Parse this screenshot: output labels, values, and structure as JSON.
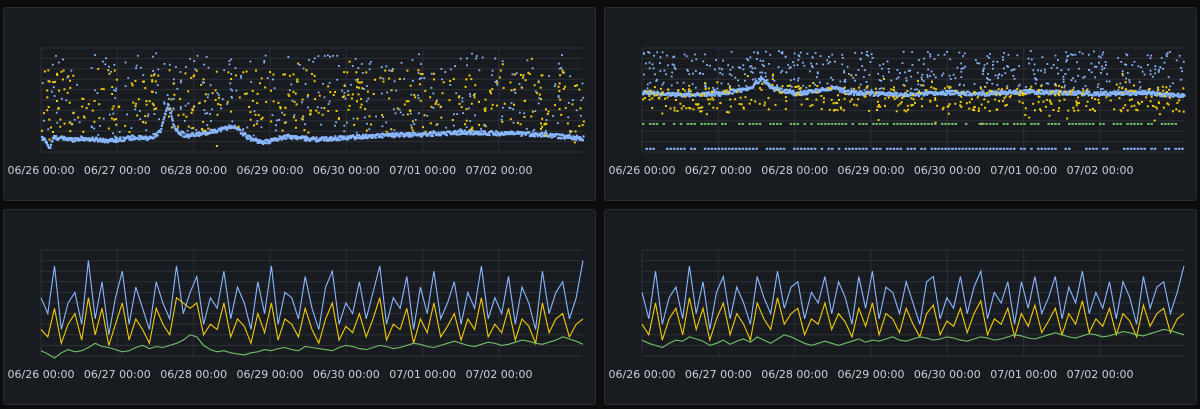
{
  "colors": {
    "background": "#0b0c0e",
    "panel": "#181b1f",
    "grid": "#2c3036",
    "blue": "#8ab8ff",
    "yellow": "#f2cc0c",
    "green": "#73bf69",
    "tick_text": "#ccccdc"
  },
  "chart_data": [
    {
      "type": "scatter",
      "title": "",
      "x_ticks": [
        "06/26 00:00",
        "06/27 00:00",
        "06/28 00:00",
        "06/29 00:00",
        "06/30 00:00",
        "07/01 00:00",
        "07/02 00:00"
      ],
      "x_range_days": [
        0,
        7.1
      ],
      "ylim": [
        0,
        100
      ],
      "grid": true,
      "series": [
        {
          "name": "blue",
          "color": "#8ab8ff",
          "style": "dense-band",
          "baseline": [
            [
              0.0,
              14
            ],
            [
              0.05,
              12
            ],
            [
              0.1,
              4
            ],
            [
              0.15,
              15
            ],
            [
              0.4,
              13
            ],
            [
              0.5,
              14
            ],
            [
              0.9,
              12
            ],
            [
              1.2,
              15
            ],
            [
              1.4,
              14
            ],
            [
              1.55,
              20
            ],
            [
              1.65,
              47
            ],
            [
              1.75,
              22
            ],
            [
              1.9,
              16
            ],
            [
              2.3,
              22
            ],
            [
              2.5,
              26
            ],
            [
              2.7,
              15
            ],
            [
              2.9,
              10
            ],
            [
              3.2,
              16
            ],
            [
              3.6,
              13
            ],
            [
              4.0,
              15
            ],
            [
              4.5,
              17
            ],
            [
              5.0,
              18
            ],
            [
              5.5,
              20
            ],
            [
              6.0,
              19
            ],
            [
              6.5,
              18
            ],
            [
              7.1,
              14
            ]
          ],
          "scatter_density": "medium"
        },
        {
          "name": "yellow",
          "color": "#f2cc0c",
          "style": "scatter",
          "level_range": [
            20,
            80
          ]
        }
      ]
    },
    {
      "type": "scatter",
      "title": "",
      "x_ticks": [
        "06/26 00:00",
        "06/27 00:00",
        "06/28 00:00",
        "06/29 00:00",
        "06/30 00:00",
        "07/01 00:00",
        "07/02 00:00"
      ],
      "x_range_days": [
        0,
        7.1
      ],
      "ylim": [
        0,
        100
      ],
      "grid": true,
      "series": [
        {
          "name": "blue",
          "color": "#8ab8ff",
          "style": "dense-band",
          "baseline": [
            [
              0.0,
              58
            ],
            [
              0.5,
              56
            ],
            [
              1.0,
              57
            ],
            [
              1.4,
              62
            ],
            [
              1.55,
              72
            ],
            [
              1.7,
              62
            ],
            [
              2.0,
              57
            ],
            [
              2.3,
              60
            ],
            [
              2.5,
              63
            ],
            [
              2.7,
              58
            ],
            [
              3.0,
              57
            ],
            [
              3.5,
              56
            ],
            [
              4.0,
              58
            ],
            [
              4.5,
              57
            ],
            [
              5.0,
              59
            ],
            [
              5.5,
              58
            ],
            [
              6.0,
              57
            ],
            [
              6.5,
              58
            ],
            [
              7.1,
              55
            ]
          ],
          "scatter_density": "high"
        },
        {
          "name": "yellow",
          "color": "#f2cc0c",
          "style": "scatter",
          "level_range": [
            40,
            65
          ]
        },
        {
          "name": "green",
          "color": "#73bf69",
          "style": "dashed-level",
          "level": 28
        },
        {
          "name": "blue-floor",
          "color": "#8ab8ff",
          "style": "dashed-level",
          "level": 4
        }
      ]
    },
    {
      "type": "line",
      "title": "",
      "x_ticks": [
        "06/26 00:00",
        "06/27 00:00",
        "06/28 00:00",
        "06/29 00:00",
        "06/30 00:00",
        "07/01 00:00",
        "07/02 00:00"
      ],
      "x_range_days": [
        0,
        7.1
      ],
      "ylim": [
        0,
        100
      ],
      "grid": true,
      "series": [
        {
          "name": "blue",
          "color": "#8ab8ff",
          "values": [
            55,
            40,
            85,
            25,
            50,
            60,
            30,
            90,
            35,
            70,
            20,
            55,
            80,
            30,
            65,
            45,
            25,
            70,
            50,
            35,
            85,
            40,
            60,
            75,
            30,
            55,
            45,
            80,
            35,
            65,
            50,
            25,
            70,
            40,
            85,
            30,
            60,
            55,
            35,
            75,
            45,
            25,
            65,
            80,
            30,
            50,
            40,
            70,
            35,
            60,
            85,
            30,
            55,
            45,
            75,
            25,
            65,
            40,
            80,
            35,
            50,
            70,
            30,
            60,
            45,
            85,
            35,
            55,
            40,
            75,
            30,
            65,
            50,
            25,
            80,
            40,
            60,
            70,
            35,
            55,
            90
          ]
        },
        {
          "name": "yellow",
          "color": "#f2cc0c",
          "values": [
            25,
            18,
            45,
            12,
            30,
            40,
            15,
            55,
            20,
            45,
            10,
            30,
            50,
            15,
            35,
            25,
            12,
            45,
            30,
            20,
            55,
            50,
            45,
            50,
            20,
            30,
            25,
            50,
            18,
            35,
            28,
            12,
            40,
            22,
            50,
            15,
            35,
            30,
            18,
            45,
            25,
            12,
            35,
            50,
            15,
            28,
            22,
            40,
            18,
            35,
            55,
            15,
            30,
            25,
            45,
            12,
            35,
            22,
            50,
            18,
            28,
            40,
            15,
            35,
            25,
            55,
            18,
            30,
            22,
            45,
            15,
            35,
            28,
            12,
            50,
            22,
            35,
            40,
            18,
            30,
            35
          ]
        },
        {
          "name": "green",
          "color": "#73bf69",
          "values": [
            5,
            2,
            -2,
            3,
            6,
            4,
            5,
            8,
            12,
            9,
            8,
            6,
            4,
            5,
            8,
            10,
            7,
            9,
            8,
            10,
            12,
            15,
            20,
            18,
            10,
            6,
            4,
            5,
            3,
            2,
            1,
            3,
            4,
            6,
            5,
            7,
            8,
            6,
            5,
            9,
            8,
            7,
            6,
            5,
            8,
            10,
            9,
            7,
            6,
            8,
            10,
            9,
            7,
            8,
            10,
            12,
            11,
            9,
            8,
            10,
            12,
            14,
            12,
            10,
            9,
            11,
            13,
            12,
            10,
            11,
            13,
            15,
            14,
            12,
            11,
            13,
            15,
            18,
            16,
            14,
            11
          ]
        }
      ]
    },
    {
      "type": "line",
      "title": "",
      "x_ticks": [
        "06/26 00:00",
        "06/27 00:00",
        "06/28 00:00",
        "06/29 00:00",
        "06/30 00:00",
        "07/01 00:00",
        "07/02 00:00"
      ],
      "x_range_days": [
        0,
        7.1
      ],
      "ylim": [
        0,
        100
      ],
      "grid": true,
      "series": [
        {
          "name": "blue",
          "color": "#8ab8ff",
          "values": [
            60,
            35,
            80,
            30,
            55,
            65,
            35,
            85,
            40,
            70,
            25,
            60,
            75,
            35,
            65,
            50,
            30,
            75,
            55,
            40,
            80,
            45,
            65,
            70,
            35,
            60,
            50,
            75,
            40,
            70,
            55,
            30,
            75,
            45,
            80,
            35,
            65,
            60,
            40,
            70,
            50,
            30,
            70,
            75,
            35,
            55,
            45,
            75,
            40,
            65,
            80,
            35,
            60,
            50,
            70,
            30,
            70,
            45,
            75,
            40,
            55,
            75,
            35,
            65,
            50,
            80,
            40,
            60,
            45,
            70,
            35,
            70,
            55,
            30,
            75,
            45,
            65,
            70,
            40,
            60,
            85
          ]
        },
        {
          "name": "yellow",
          "color": "#f2cc0c",
          "values": [
            30,
            20,
            50,
            15,
            35,
            45,
            20,
            55,
            25,
            45,
            15,
            35,
            50,
            20,
            40,
            30,
            15,
            50,
            35,
            25,
            55,
            30,
            40,
            45,
            20,
            35,
            30,
            50,
            25,
            40,
            32,
            18,
            45,
            28,
            50,
            20,
            40,
            35,
            22,
            45,
            30,
            18,
            40,
            48,
            20,
            33,
            28,
            45,
            22,
            40,
            52,
            20,
            35,
            30,
            45,
            18,
            40,
            28,
            48,
            22,
            33,
            45,
            20,
            40,
            30,
            52,
            22,
            35,
            28,
            45,
            20,
            40,
            33,
            18,
            48,
            28,
            40,
            45,
            22,
            35,
            40
          ]
        },
        {
          "name": "green",
          "color": "#73bf69",
          "values": [
            15,
            12,
            10,
            8,
            12,
            15,
            14,
            18,
            16,
            14,
            10,
            12,
            15,
            11,
            14,
            16,
            13,
            18,
            15,
            12,
            16,
            20,
            18,
            15,
            12,
            10,
            12,
            14,
            12,
            10,
            12,
            14,
            16,
            13,
            15,
            14,
            16,
            18,
            15,
            14,
            16,
            18,
            17,
            15,
            16,
            18,
            17,
            15,
            14,
            16,
            18,
            17,
            15,
            16,
            18,
            20,
            19,
            17,
            16,
            18,
            20,
            22,
            20,
            18,
            17,
            19,
            21,
            20,
            18,
            19,
            21,
            23,
            22,
            20,
            19,
            21,
            23,
            25,
            24,
            22,
            20
          ]
        }
      ]
    }
  ]
}
